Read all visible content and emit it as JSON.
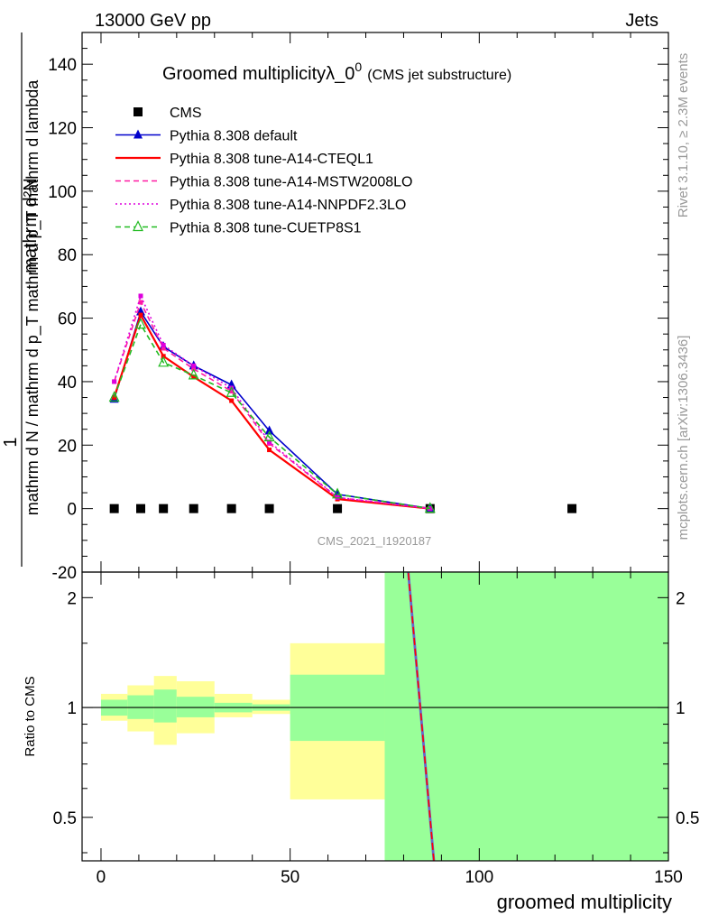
{
  "header": {
    "left": "13000 GeV pp",
    "right": "Jets"
  },
  "side_labels": {
    "rivet": "Rivet 3.1.10, ≥ 2.3M events",
    "mcplots": "mcplots.cern.ch [arXiv:1306.3436]"
  },
  "chart_data": [
    {
      "type": "line",
      "title": "Groomed multiplicityλ_0",
      "title_sup": "0",
      "subtitle": "(CMS jet substructure)",
      "ylabel_numerator": "1",
      "ylabel_denominator": "mathrm d N / mathrm d p_T mathrm d p_T mathrm d lambda",
      "ylabel_top": "mathrm d²N",
      "ylim": [
        -20,
        150
      ],
      "xlim": [
        -5,
        150
      ],
      "yticks": [
        -20,
        0,
        20,
        40,
        60,
        80,
        100,
        120,
        140
      ],
      "analysis_label": "CMS_2021_I1920187",
      "grid": false,
      "legend_position": "top-left",
      "series": [
        {
          "name": "CMS",
          "color": "#000000",
          "style": "marker-square",
          "x": [
            3.5,
            10.5,
            16.5,
            24.5,
            34.5,
            44.5,
            62.5,
            87,
            124.5
          ],
          "y": [
            0,
            0,
            0,
            0,
            0,
            0,
            0,
            0,
            0
          ]
        },
        {
          "name": "Pythia 8.308 default",
          "color": "#0000cc",
          "style": "solid-triangle",
          "x": [
            3.5,
            10.5,
            16.5,
            24.5,
            34.5,
            44.5,
            62.5,
            87
          ],
          "y": [
            34.5,
            62,
            51,
            45,
            39,
            24.5,
            4.5,
            0
          ]
        },
        {
          "name": "Pythia 8.308 tune-A14-CTEQL1",
          "color": "#ff0000",
          "style": "solid",
          "x": [
            3.5,
            10.5,
            16.5,
            24.5,
            34.5,
            44.5,
            62.5,
            87
          ],
          "y": [
            35,
            61,
            48,
            41.5,
            34,
            18.5,
            3,
            0
          ]
        },
        {
          "name": "Pythia 8.308 tune-A14-MSTW2008LO",
          "color": "#ff1aa3",
          "style": "dashed",
          "x": [
            3.5,
            10.5,
            16.5,
            24.5,
            34.5,
            44.5,
            62.5,
            87
          ],
          "y": [
            40,
            65,
            50.5,
            44,
            37,
            20.5,
            3.5,
            0
          ]
        },
        {
          "name": "Pythia 8.308 tune-A14-NNPDF2.3LO",
          "color": "#dd00dd",
          "style": "dotted",
          "x": [
            3.5,
            10.5,
            16.5,
            24.5,
            34.5,
            44.5,
            62.5,
            87
          ],
          "y": [
            40,
            67,
            51.5,
            45,
            38,
            21,
            3.5,
            0
          ]
        },
        {
          "name": "Pythia 8.308 tune-CUETP8S1",
          "color": "#22bb22",
          "style": "dashed-open-triangle",
          "x": [
            3.5,
            10.5,
            16.5,
            24.5,
            34.5,
            44.5,
            62.5,
            87
          ],
          "y": [
            35,
            58,
            46,
            42,
            36.5,
            22.5,
            4.5,
            0
          ]
        }
      ]
    },
    {
      "type": "line",
      "ylabel": "Ratio to CMS",
      "xlabel": "groomed multiplicity",
      "ylim": [
        0.38,
        2.35
      ],
      "log_y": true,
      "xlim": [
        -5,
        150
      ],
      "xticks": [
        0,
        50,
        100,
        150
      ],
      "yticks": [
        0.5,
        1,
        2
      ],
      "bands": [
        {
          "x0": 0,
          "x1": 7,
          "stat": [
            0.95,
            1.05
          ],
          "total": [
            0.92,
            1.09
          ]
        },
        {
          "x0": 7,
          "x1": 14,
          "stat": [
            0.93,
            1.08
          ],
          "total": [
            0.86,
            1.15
          ]
        },
        {
          "x0": 14,
          "x1": 20,
          "stat": [
            0.91,
            1.12
          ],
          "total": [
            0.79,
            1.22
          ]
        },
        {
          "x0": 20,
          "x1": 30,
          "stat": [
            0.94,
            1.07
          ],
          "total": [
            0.85,
            1.18
          ]
        },
        {
          "x0": 30,
          "x1": 40,
          "stat": [
            0.97,
            1.03
          ],
          "total": [
            0.94,
            1.09
          ]
        },
        {
          "x0": 40,
          "x1": 50,
          "stat": [
            0.98,
            1.02
          ],
          "total": [
            0.96,
            1.05
          ]
        },
        {
          "x0": 50,
          "x1": 75,
          "stat": [
            0.81,
            1.23
          ],
          "total": [
            0.56,
            1.5
          ]
        },
        {
          "x0": 75,
          "x1": 150,
          "stat": [
            0.1,
            10
          ],
          "total": [
            0.1,
            10
          ]
        }
      ],
      "colors": {
        "stat": "#99ff99",
        "total": "#ffff99"
      },
      "ratio_line": {
        "x": [
          81,
          88
        ],
        "y": [
          2.5,
          0.38
        ],
        "color": "#ff0000",
        "overlay_color": "#6666cc"
      }
    }
  ]
}
